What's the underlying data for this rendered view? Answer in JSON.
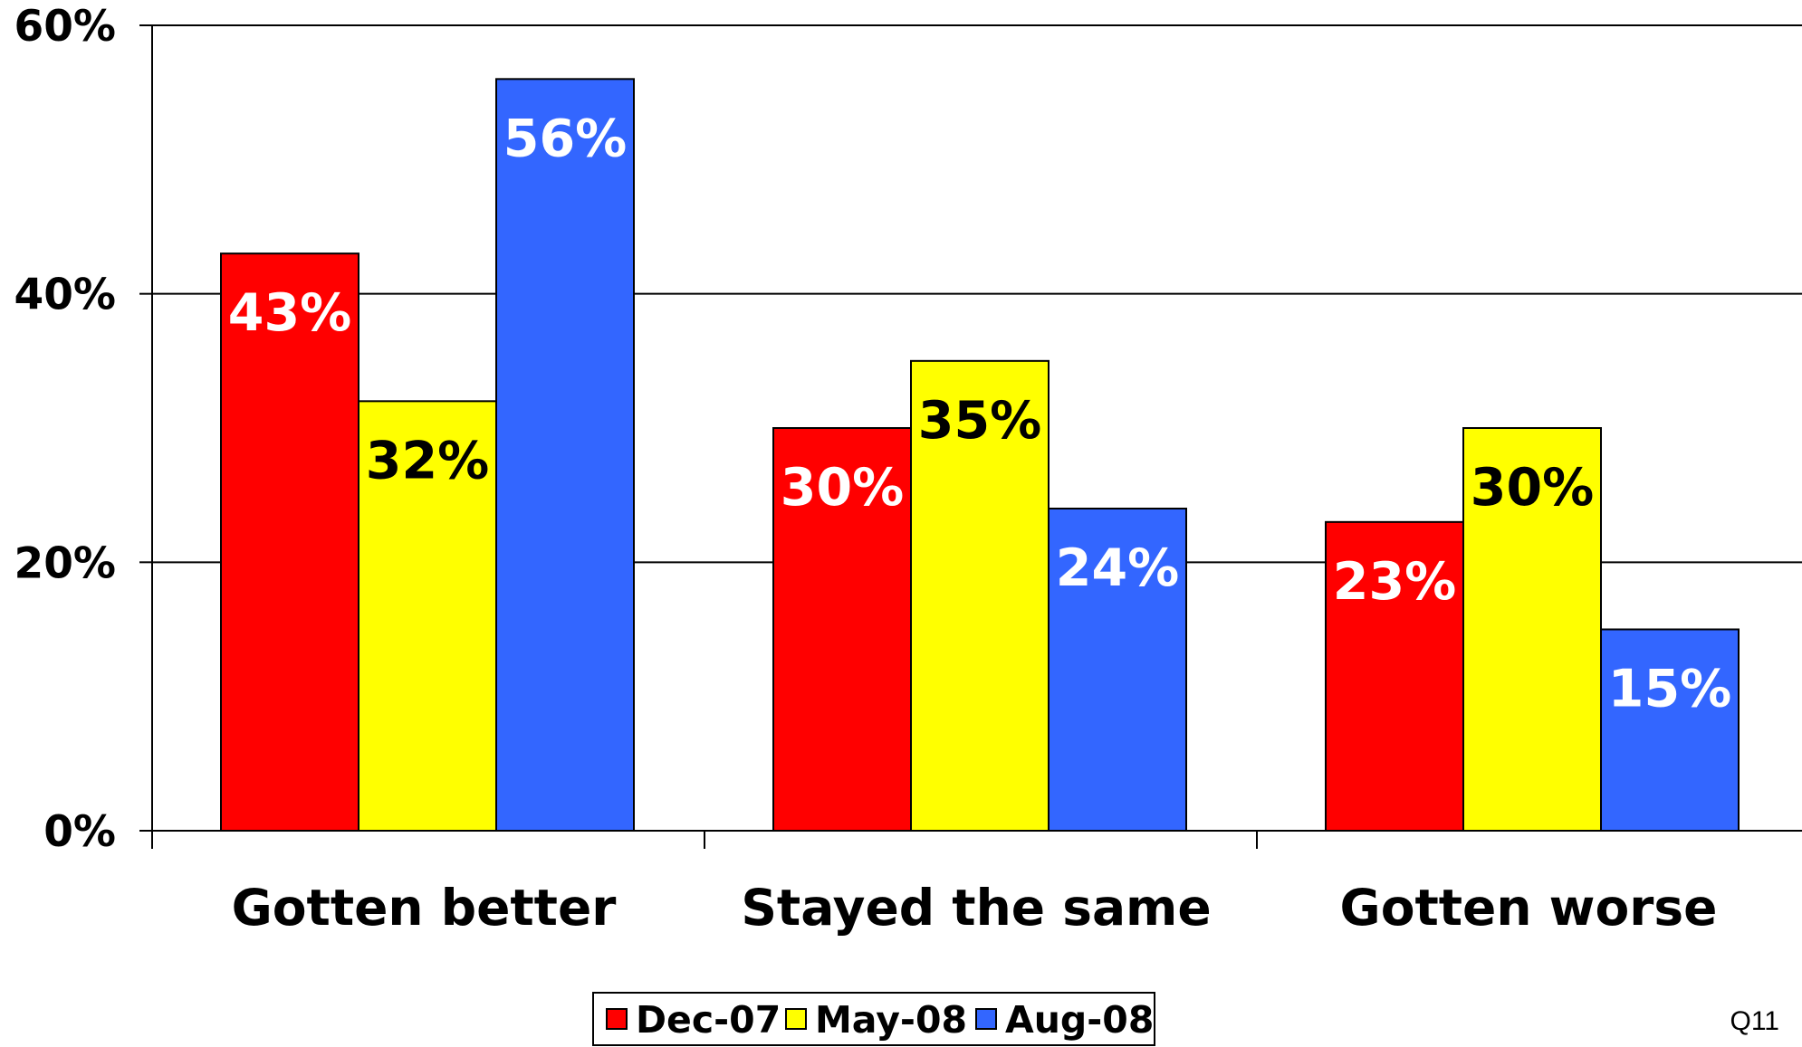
{
  "chart_data": {
    "type": "bar",
    "categories": [
      "Gotten better",
      "Stayed the same",
      "Gotten worse"
    ],
    "series": [
      {
        "name": "Dec-07",
        "color": "#ff0000",
        "label_color": "#ffffff",
        "values": [
          43,
          30,
          23
        ]
      },
      {
        "name": "May-08",
        "color": "#ffff00",
        "label_color": "#000000",
        "values": [
          32,
          35,
          30
        ]
      },
      {
        "name": "Aug-08",
        "color": "#3366ff",
        "label_color": "#ffffff",
        "values": [
          56,
          24,
          15
        ]
      }
    ],
    "data_labels": [
      [
        "43%",
        "30%",
        "23%"
      ],
      [
        "32%",
        "35%",
        "30%"
      ],
      [
        "56%",
        "24%",
        "15%"
      ]
    ],
    "yticks": [
      0,
      20,
      40,
      60
    ],
    "ytick_labels": [
      "0%",
      "20%",
      "40%",
      "60%"
    ],
    "ylim": [
      0,
      60
    ],
    "grid": true,
    "legend_position": "bottom",
    "title": "",
    "xlabel": "",
    "ylabel": "",
    "note": "Q11"
  }
}
